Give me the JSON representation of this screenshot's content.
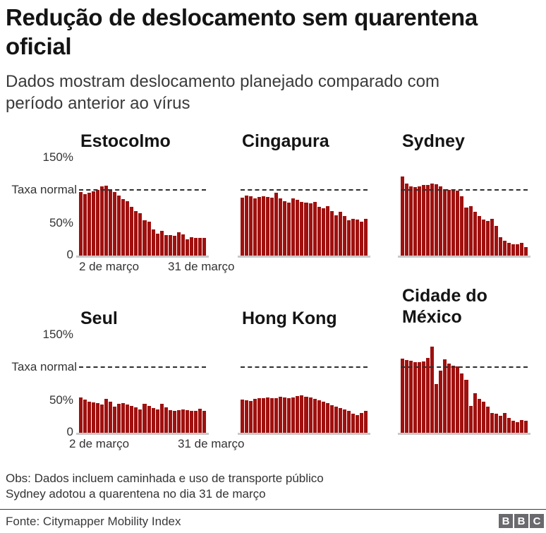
{
  "header": {
    "title": "Redução de deslocamento sem quarentena oficial",
    "subtitle": "Dados mostram deslocamento planejado comparado com período anterior ao vírus"
  },
  "axis": {
    "y_top": "150%",
    "y_normal": "Taxa normal",
    "y_mid": "50%",
    "y_zero": "0",
    "x_start": "2 de março",
    "x_end": "31 de março"
  },
  "chart_data": {
    "type": "bar",
    "title": "Redução de deslocamento sem quarentena oficial",
    "x_range": [
      "2 de março",
      "31 de março"
    ],
    "n_bars_per_series": 30,
    "ylim": [
      0,
      150
    ],
    "y_ticks": [
      0,
      50,
      100,
      150
    ],
    "reference_line": {
      "value": 100,
      "label": "Taxa normal",
      "style": "dashed"
    },
    "bar_color": "#9f100e",
    "grid": false,
    "legend": "none",
    "unit": "% da taxa normal (deslocamento planejado)",
    "series": [
      {
        "name": "Estocolmo",
        "values": [
          97,
          94,
          96,
          98,
          100,
          106,
          107,
          101,
          97,
          92,
          86,
          83,
          74,
          68,
          65,
          54,
          52,
          40,
          34,
          38,
          31,
          31,
          30,
          36,
          32,
          25,
          28,
          27,
          27,
          27
        ]
      },
      {
        "name": "Cingapura",
        "values": [
          89,
          92,
          91,
          88,
          90,
          91,
          90,
          89,
          96,
          88,
          83,
          81,
          87,
          85,
          82,
          81,
          80,
          82,
          74,
          72,
          76,
          68,
          62,
          67,
          60,
          54,
          56,
          55,
          52,
          56
        ]
      },
      {
        "name": "Sydney",
        "values": [
          121,
          110,
          106,
          105,
          106,
          108,
          108,
          110,
          109,
          106,
          101,
          100,
          101,
          99,
          91,
          73,
          76,
          67,
          60,
          55,
          53,
          56,
          45,
          28,
          23,
          19,
          17,
          17,
          19,
          13
        ]
      },
      {
        "name": "Seul",
        "values": [
          54,
          51,
          48,
          46,
          45,
          43,
          52,
          48,
          40,
          44,
          45,
          43,
          41,
          39,
          36,
          44,
          41,
          38,
          36,
          44,
          39,
          35,
          34,
          35,
          36,
          35,
          34,
          33,
          37,
          34
        ]
      },
      {
        "name": "Hong Kong",
        "values": [
          51,
          50,
          49,
          52,
          53,
          53,
          54,
          53,
          53,
          55,
          54,
          53,
          54,
          56,
          57,
          55,
          54,
          52,
          50,
          48,
          45,
          42,
          40,
          38,
          36,
          33,
          29,
          27,
          30,
          34
        ]
      },
      {
        "name": "Cidade do México",
        "values": [
          113,
          111,
          110,
          108,
          108,
          109,
          114,
          132,
          74,
          95,
          112,
          106,
          103,
          101,
          91,
          81,
          41,
          61,
          52,
          48,
          40,
          30,
          29,
          26,
          30,
          23,
          18,
          16,
          19,
          18
        ]
      }
    ]
  },
  "footer": {
    "note1": "Obs: Dados incluem caminhada e uso de transporte público",
    "note2": "Sydney adotou a quarentena no dia 31 de março",
    "source": "Fonte: Citymapper Mobility Index",
    "logo": [
      "B",
      "B",
      "C"
    ]
  }
}
